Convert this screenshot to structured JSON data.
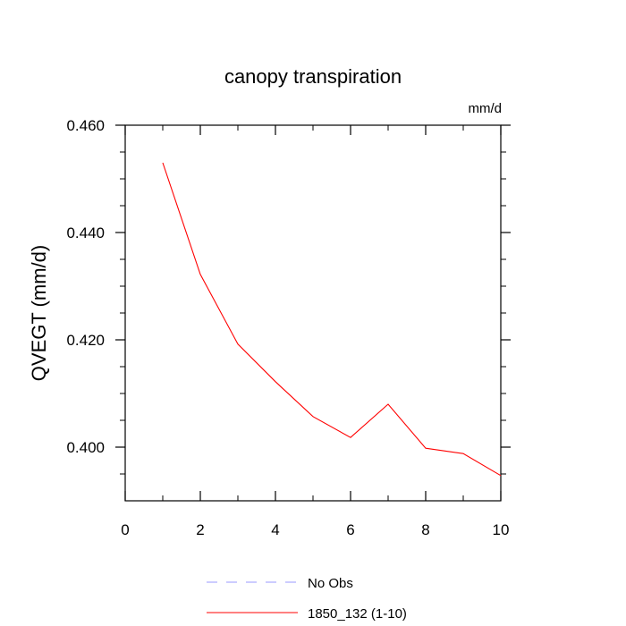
{
  "chart_data": {
    "type": "line",
    "title": "canopy transpiration",
    "units_label": "mm/d",
    "ylabel": "QVEGT  (mm/d)",
    "xlabel": "",
    "xlim": [
      0,
      10
    ],
    "ylim": [
      0.39,
      0.46
    ],
    "x_ticks": [
      0,
      2,
      4,
      6,
      8,
      10
    ],
    "x_tick_labels": [
      "0",
      "2",
      "4",
      "6",
      "8",
      "10"
    ],
    "x_minor_ticks": [
      1,
      3,
      5,
      7,
      9
    ],
    "y_ticks": [
      0.4,
      0.42,
      0.44,
      0.46
    ],
    "y_tick_labels": [
      "0.400",
      "0.420",
      "0.440",
      "0.460"
    ],
    "y_minor_ticks": [
      0.395,
      0.405,
      0.41,
      0.415,
      0.425,
      0.43,
      0.435,
      0.445,
      0.45,
      0.455
    ],
    "grid": false,
    "legend_position": "bottom",
    "series": [
      {
        "name": "1850_132 (1-10)",
        "color": "#ff0000",
        "dash": "solid",
        "x": [
          1,
          2,
          3,
          4,
          5,
          6,
          7,
          8,
          9,
          10
        ],
        "values": [
          0.453,
          0.4322,
          0.4192,
          0.4122,
          0.4057,
          0.4018,
          0.408,
          0.3998,
          0.3988,
          0.3947
        ]
      }
    ],
    "legend": [
      {
        "label": "No Obs",
        "color": "#9999ff",
        "dash": "dashed"
      },
      {
        "label": "1850_132 (1-10)",
        "color": "#ff0000",
        "dash": "solid"
      }
    ]
  }
}
